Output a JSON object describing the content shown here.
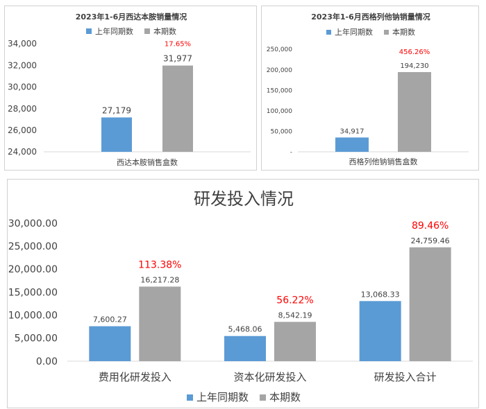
{
  "colors": {
    "prior": "#5b9bd5",
    "current": "#a5a5a5",
    "growth": "#ff0000",
    "axis": "#d9d9d9",
    "text": "#404040"
  },
  "chart_data": [
    {
      "type": "bar",
      "title": "2023年1-6月西达本胺销量情况",
      "categories": [
        "西达本胺销售盒数"
      ],
      "series": [
        {
          "name": "上年同期数",
          "values": [
            27179
          ],
          "labels": [
            "27,179"
          ]
        },
        {
          "name": "本期数",
          "values": [
            31977
          ],
          "labels": [
            "31,977"
          ]
        }
      ],
      "growth_labels": [
        "17.65%"
      ],
      "ylim": [
        24000,
        34000
      ],
      "yticks": [
        24000,
        26000,
        28000,
        30000,
        32000,
        34000
      ],
      "ytick_labels": [
        "24,000",
        "26,000",
        "28,000",
        "30,000",
        "32,000",
        "34,000"
      ],
      "grid": false,
      "legend": "top"
    },
    {
      "type": "bar",
      "title": "2023年1-6月西格列他钠销量情况",
      "categories": [
        "西格列他钠销售盒数"
      ],
      "series": [
        {
          "name": "上年同期数",
          "values": [
            34917
          ],
          "labels": [
            "34,917"
          ]
        },
        {
          "name": "本期数",
          "values": [
            194230
          ],
          "labels": [
            "194,230"
          ]
        }
      ],
      "growth_labels": [
        "456.26%"
      ],
      "ylim": [
        0,
        250000
      ],
      "yticks": [
        0,
        50000,
        100000,
        150000,
        200000,
        250000
      ],
      "ytick_labels": [
        "-",
        "50,000",
        "100,000",
        "150,000",
        "200,000",
        "250,000"
      ],
      "grid": false,
      "legend": "top"
    },
    {
      "type": "bar",
      "title": "研发投入情况",
      "categories": [
        "费用化研发投入",
        "资本化研发投入",
        "研发投入合计"
      ],
      "series": [
        {
          "name": "上年同期数",
          "values": [
            7600.27,
            5468.06,
            13068.33
          ],
          "labels": [
            "7,600.27",
            "5,468.06",
            "13,068.33"
          ]
        },
        {
          "name": "本期数",
          "values": [
            16217.28,
            8542.19,
            24759.46
          ],
          "labels": [
            "16,217.28",
            "8,542.19",
            "24,759.46"
          ]
        }
      ],
      "growth_labels": [
        "113.38%",
        "56.22%",
        "89.46%"
      ],
      "ylim": [
        0,
        30000
      ],
      "yticks": [
        0,
        5000,
        10000,
        15000,
        20000,
        25000,
        30000
      ],
      "ytick_labels": [
        "0.00",
        "5,000.00",
        "10,000.00",
        "15,000.00",
        "20,000.00",
        "25,000.00",
        "30,000.00"
      ],
      "grid": false,
      "legend": "bottom"
    }
  ]
}
